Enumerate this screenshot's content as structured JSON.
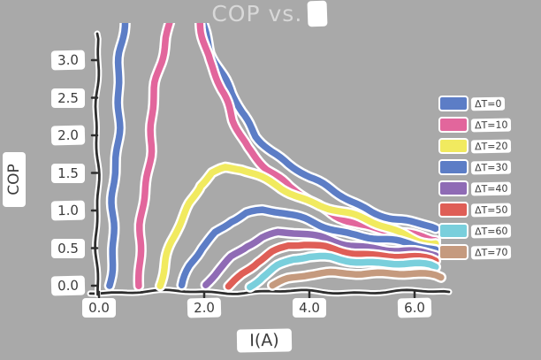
{
  "chart_data": {
    "type": "line",
    "style": "hand-drawn-xkcd",
    "title": "COP vs. I",
    "title_prefix": "COP vs.",
    "title_suffix": "I",
    "xlabel": "I(A)",
    "ylabel": "COP",
    "xlim": [
      0.0,
      6.6
    ],
    "ylim": [
      0.0,
      3.0
    ],
    "xticks": [
      "0.0",
      "2.0",
      "4.0",
      "6.0"
    ],
    "yticks": [
      "3.0",
      "2.5",
      "2.0",
      "1.5",
      "1.0",
      "0.5",
      "0.0"
    ],
    "grid": false,
    "legend_position": "right",
    "colors": {
      "background": "#a9a9a9",
      "axis": "#2e2e2e",
      "tick_text": "#3b3b3b",
      "title_text": "#d8d8d8",
      "halo": "#ffffff"
    },
    "series": [
      {
        "name": "ΔT=0",
        "color": "#5c7dc6",
        "points": [
          [
            0.2,
            0
          ],
          [
            0.26,
            0.7
          ],
          [
            0.31,
            1.5
          ],
          [
            0.36,
            2.3
          ],
          [
            0.42,
            3.1
          ],
          [
            0.5,
            3.8
          ],
          [
            0.7,
            4.6
          ],
          [
            1.1,
            5.0
          ],
          [
            1.5,
            4.6
          ],
          [
            1.8,
            4.0
          ],
          [
            2.0,
            3.5
          ],
          [
            2.15,
            3.1
          ],
          [
            2.3,
            2.85
          ],
          [
            2.5,
            2.55
          ],
          [
            2.7,
            2.3
          ],
          [
            3.0,
            2.0
          ],
          [
            3.3,
            1.8
          ],
          [
            3.6,
            1.62
          ],
          [
            4.0,
            1.42
          ],
          [
            4.4,
            1.27
          ],
          [
            4.8,
            1.13
          ],
          [
            5.2,
            1.0
          ],
          [
            5.6,
            0.9
          ],
          [
            6.0,
            0.82
          ],
          [
            6.4,
            0.76
          ]
        ]
      },
      {
        "name": "ΔT=10",
        "color": "#e2669c",
        "points": [
          [
            0.72,
            0
          ],
          [
            0.8,
            0.6
          ],
          [
            0.88,
            1.3
          ],
          [
            0.98,
            2.0
          ],
          [
            1.1,
            2.7
          ],
          [
            1.25,
            3.3
          ],
          [
            1.45,
            3.9
          ],
          [
            1.7,
            4.1
          ],
          [
            1.95,
            3.5
          ],
          [
            2.1,
            3.0
          ],
          [
            2.3,
            2.6
          ],
          [
            2.55,
            2.2
          ],
          [
            2.85,
            1.85
          ],
          [
            3.2,
            1.55
          ],
          [
            3.6,
            1.3
          ],
          [
            4.0,
            1.12
          ],
          [
            4.5,
            0.95
          ],
          [
            5.0,
            0.82
          ],
          [
            5.5,
            0.72
          ],
          [
            6.0,
            0.65
          ],
          [
            6.4,
            0.6
          ]
        ]
      },
      {
        "name": "ΔT=20",
        "color": "#f1ea5f",
        "points": [
          [
            1.15,
            0
          ],
          [
            1.3,
            0.35
          ],
          [
            1.5,
            0.75
          ],
          [
            1.7,
            1.1
          ],
          [
            1.9,
            1.35
          ],
          [
            2.15,
            1.5
          ],
          [
            2.4,
            1.56
          ],
          [
            2.7,
            1.53
          ],
          [
            3.0,
            1.45
          ],
          [
            3.4,
            1.33
          ],
          [
            3.8,
            1.2
          ],
          [
            4.2,
            1.08
          ],
          [
            4.7,
            0.95
          ],
          [
            5.2,
            0.83
          ],
          [
            5.7,
            0.72
          ],
          [
            6.1,
            0.62
          ],
          [
            6.4,
            0.56
          ]
        ]
      },
      {
        "name": "ΔT=30",
        "color": "#5c7dc6",
        "points": [
          [
            1.6,
            0
          ],
          [
            1.75,
            0.25
          ],
          [
            1.95,
            0.5
          ],
          [
            2.2,
            0.72
          ],
          [
            2.5,
            0.88
          ],
          [
            2.8,
            0.97
          ],
          [
            3.1,
            0.99
          ],
          [
            3.5,
            0.95
          ],
          [
            3.9,
            0.88
          ],
          [
            4.3,
            0.8
          ],
          [
            4.8,
            0.7
          ],
          [
            5.3,
            0.62
          ],
          [
            5.8,
            0.55
          ],
          [
            6.4,
            0.48
          ]
        ]
      },
      {
        "name": "ΔT=40",
        "color": "#8f6bb5",
        "points": [
          [
            2.05,
            0
          ],
          [
            2.25,
            0.2
          ],
          [
            2.5,
            0.4
          ],
          [
            2.8,
            0.55
          ],
          [
            3.1,
            0.64
          ],
          [
            3.4,
            0.69
          ],
          [
            3.8,
            0.68
          ],
          [
            4.2,
            0.64
          ],
          [
            4.7,
            0.57
          ],
          [
            5.2,
            0.51
          ],
          [
            5.7,
            0.45
          ],
          [
            6.4,
            0.4
          ]
        ]
      },
      {
        "name": "ΔT=50",
        "color": "#df5e56",
        "points": [
          [
            2.45,
            0
          ],
          [
            2.7,
            0.17
          ],
          [
            3.0,
            0.33
          ],
          [
            3.3,
            0.44
          ],
          [
            3.6,
            0.51
          ],
          [
            3.9,
            0.53
          ],
          [
            4.3,
            0.51
          ],
          [
            4.7,
            0.47
          ],
          [
            5.2,
            0.42
          ],
          [
            5.7,
            0.38
          ],
          [
            6.4,
            0.33
          ]
        ]
      },
      {
        "name": "ΔT=60",
        "color": "#79cfdc",
        "points": [
          [
            2.85,
            0
          ],
          [
            3.1,
            0.13
          ],
          [
            3.4,
            0.25
          ],
          [
            3.7,
            0.33
          ],
          [
            4.0,
            0.37
          ],
          [
            4.4,
            0.38
          ],
          [
            4.8,
            0.35
          ],
          [
            5.3,
            0.31
          ],
          [
            5.8,
            0.28
          ],
          [
            6.4,
            0.25
          ]
        ]
      },
      {
        "name": "ΔT=70",
        "color": "#c59a7e",
        "points": [
          [
            3.3,
            0
          ],
          [
            3.6,
            0.07
          ],
          [
            4.0,
            0.13
          ],
          [
            4.4,
            0.17
          ],
          [
            4.8,
            0.19
          ],
          [
            5.2,
            0.18
          ],
          [
            5.6,
            0.16
          ],
          [
            6.0,
            0.14
          ],
          [
            6.5,
            0.11
          ]
        ]
      }
    ]
  }
}
